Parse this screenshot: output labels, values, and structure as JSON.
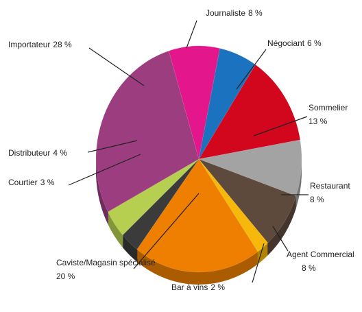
{
  "chart_data": {
    "type": "pie",
    "categories": [
      "Journaliste",
      "Négociant",
      "Sommelier",
      "Restaurant",
      "Agent Commercial",
      "Bar à vins",
      "Caviste/Magasin spécialisé",
      "Courtier",
      "Distributeur",
      "Importateur"
    ],
    "values": [
      8,
      6,
      13,
      8,
      8,
      2,
      20,
      3,
      4,
      28
    ],
    "value_labels": [
      "8 %",
      "6 %",
      "13 %",
      "8 %",
      "8 %",
      "2 %",
      "20 %",
      "3 %",
      "4 %",
      "28 %"
    ],
    "colors": [
      "#e3168c",
      "#1b72be",
      "#d2071e",
      "#a3a3a3",
      "#5e4a3d",
      "#f6b80a",
      "#ee7f00",
      "#3b3b3b",
      "#b6cf50",
      "#9c3d80"
    ]
  }
}
